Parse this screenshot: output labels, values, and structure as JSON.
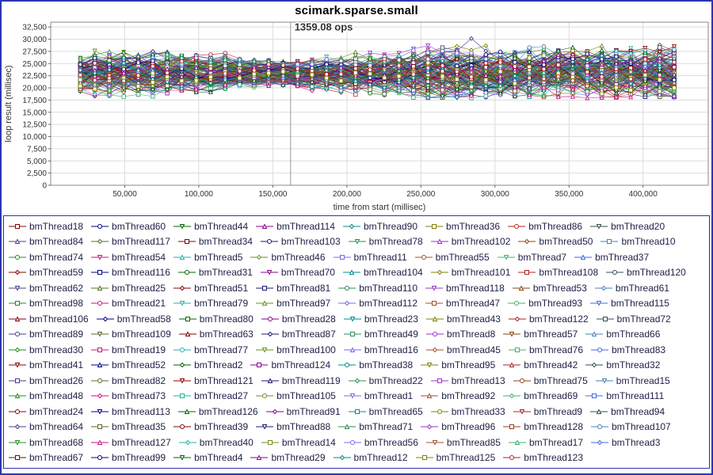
{
  "frame": {
    "border_color": "#2d35b0",
    "background": "#ffffff"
  },
  "chart_data": {
    "type": "line",
    "title": "scimark.sparse.small",
    "xlabel": "time from start (millisec)",
    "ylabel": "loop result (millisec)",
    "xlim": [
      0,
      444000
    ],
    "ylim": [
      0,
      33500
    ],
    "x_ticks": [
      50000,
      100000,
      150000,
      200000,
      250000,
      300000,
      350000,
      400000
    ],
    "y_ticks": [
      0,
      2500,
      5000,
      7500,
      10000,
      12500,
      15000,
      17500,
      20000,
      22500,
      25000,
      27500,
      30000,
      32500
    ],
    "grid": true,
    "legend_position": "bottom",
    "annotation": {
      "text": "1359.08 ops",
      "x": 163000,
      "y": 31800
    },
    "vline_x": 162000,
    "y_range_observed": [
      17900,
      30600
    ],
    "marker_shapes": [
      "square",
      "circle",
      "triangle-down",
      "triangle-up",
      "diamond"
    ],
    "palette": [
      "#8b0000",
      "#00008b",
      "#006400",
      "#8b008b",
      "#008b8b",
      "#808000",
      "#b22222",
      "#2f4f4f",
      "#483d8b",
      "#556b2f",
      "#800000",
      "#191970",
      "#2e8b57",
      "#9932cc",
      "#8b4513",
      "#4682b4",
      "#228b22",
      "#c71585",
      "#20b2aa",
      "#6b8e23",
      "#7b68ee",
      "#a0522d",
      "#3cb371",
      "#4169e1"
    ],
    "synthesis": {
      "x_start": 20000,
      "x_end": 421000,
      "points": 42,
      "center_min": 21000,
      "center_max": 24800,
      "noise_amp": 2400,
      "pinch_x": 160000,
      "pinch_width": 90000,
      "pinch_min": 0.35,
      "late_spread": 1.25,
      "y_clamp": [
        17900,
        30600
      ],
      "seed": 1234
    },
    "series": [
      "bmThread18",
      "bmThread60",
      "bmThread44",
      "bmThread114",
      "bmThread90",
      "bmThread36",
      "bmThread86",
      "bmThread20",
      "bmThread84",
      "bmThread117",
      "bmThread34",
      "bmThread103",
      "bmThread78",
      "bmThread102",
      "bmThread50",
      "bmThread10",
      "bmThread74",
      "bmThread54",
      "bmThread5",
      "bmThread46",
      "bmThread11",
      "bmThread55",
      "bmThread7",
      "bmThread37",
      "bmThread59",
      "bmThread116",
      "bmThread31",
      "bmThread70",
      "bmThread104",
      "bmThread101",
      "bmThread108",
      "bmThread120",
      "bmThread62",
      "bmThread25",
      "bmThread51",
      "bmThread81",
      "bmThread110",
      "bmThread118",
      "bmThread53",
      "bmThread61",
      "bmThread98",
      "bmThread21",
      "bmThread79",
      "bmThread97",
      "bmThread112",
      "bmThread47",
      "bmThread93",
      "bmThread115",
      "bmThread106",
      "bmThread58",
      "bmThread80",
      "bmThread28",
      "bmThread23",
      "bmThread43",
      "bmThread122",
      "bmThread72",
      "bmThread89",
      "bmThread109",
      "bmThread63",
      "bmThread87",
      "bmThread49",
      "bmThread8",
      "bmThread57",
      "bmThread66",
      "bmThread30",
      "bmThread19",
      "bmThread77",
      "bmThread100",
      "bmThread16",
      "bmThread45",
      "bmThread76",
      "bmThread83",
      "bmThread41",
      "bmThread52",
      "bmThread2",
      "bmThread124",
      "bmThread38",
      "bmThread95",
      "bmThread42",
      "bmThread32",
      "bmThread26",
      "bmThread82",
      "bmThread121",
      "bmThread119",
      "bmThread22",
      "bmThread13",
      "bmThread75",
      "bmThread15",
      "bmThread48",
      "bmThread73",
      "bmThread27",
      "bmThread105",
      "bmThread1",
      "bmThread92",
      "bmThread69",
      "bmThread111",
      "bmThread24",
      "bmThread113",
      "bmThread126",
      "bmThread91",
      "bmThread65",
      "bmThread33",
      "bmThread9",
      "bmThread94",
      "bmThread64",
      "bmThread35",
      "bmThread39",
      "bmThread88",
      "bmThread71",
      "bmThread96",
      "bmThread128",
      "bmThread107",
      "bmThread68",
      "bmThread127",
      "bmThread40",
      "bmThread14",
      "bmThread56",
      "bmThread85",
      "bmThread17",
      "bmThread3",
      "bmThread67",
      "bmThread99",
      "bmThread4",
      "bmThread29",
      "bmThread12",
      "bmThread125",
      "bmThread123"
    ]
  }
}
